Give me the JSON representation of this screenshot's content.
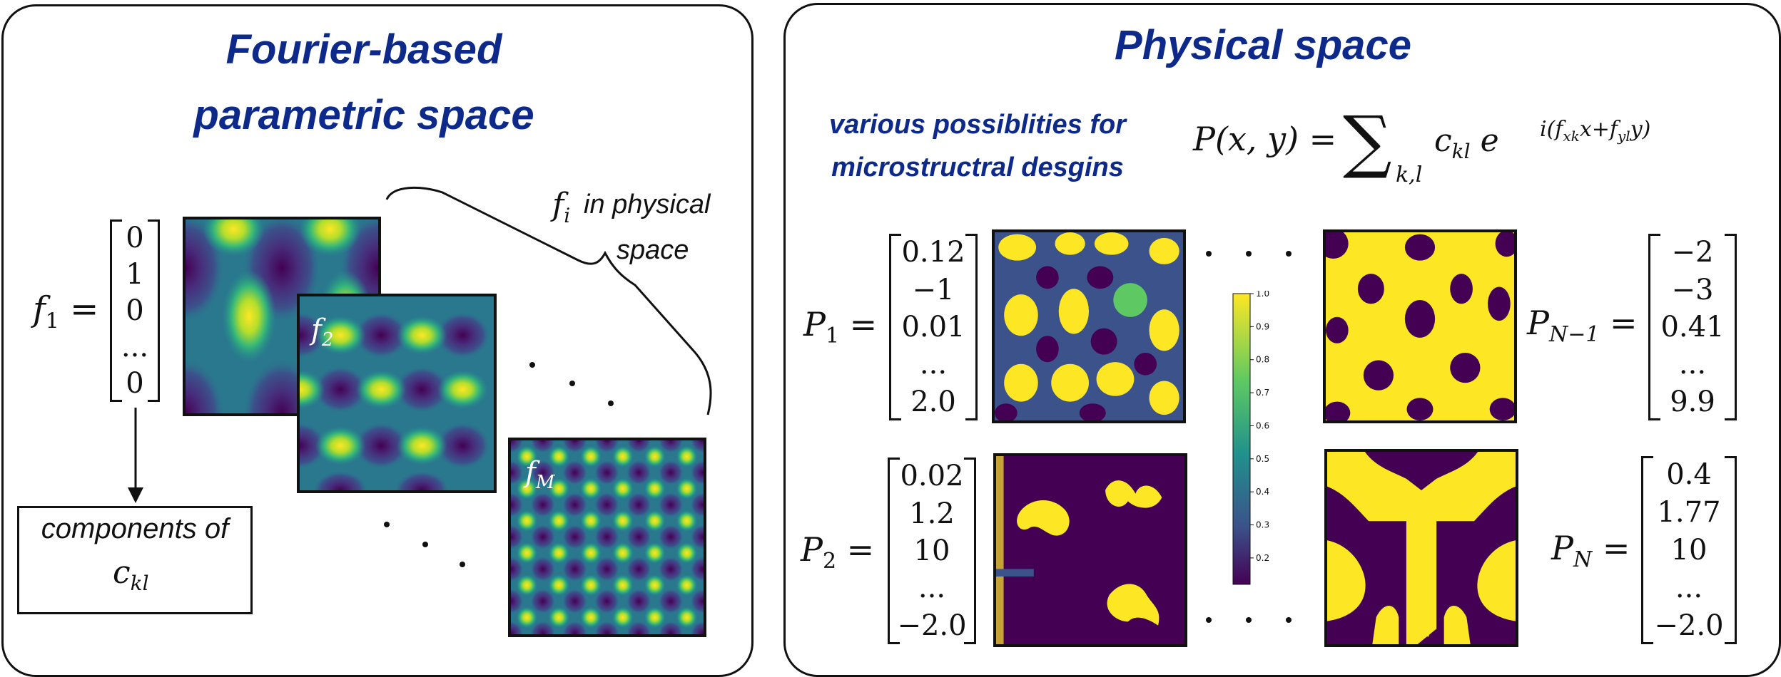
{
  "left_panel": {
    "title_line1": "Fourier-based",
    "title_line2": "parametric space",
    "f1_label": "f",
    "f1_sub": "1",
    "f1_vector": [
      "0",
      "1",
      "0",
      "...",
      "0"
    ],
    "f2_label": "f",
    "f2_sub": "2",
    "fM_label": "f",
    "fM_sub": "M",
    "fi_label": "f",
    "fi_sub": "i",
    "fi_text_line1": "in physical",
    "fi_text_line2": "space",
    "components_text": "components of",
    "ckl_label": "c",
    "ckl_sub": "kl"
  },
  "right_panel": {
    "title": "Physical space",
    "subtitle_line1": "various possiblities for",
    "subtitle_line2": "microstructral desgins",
    "equation": {
      "lhs": "P(x, y) =",
      "sum": "∑",
      "sum_sub": "k,l",
      "coef": "c",
      "coef_sub": "kl",
      "exp_base": "e",
      "exponent": "i(f",
      "exponent_sub1": "xk",
      "exponent_mid": "x+f",
      "exponent_sub2": "yl",
      "exponent_end": "y)"
    },
    "P1": {
      "label": "P",
      "sub": "1",
      "vector": [
        "0.12",
        "−1",
        "0.01",
        "...",
        "2.0"
      ]
    },
    "P2": {
      "label": "P",
      "sub": "2",
      "vector": [
        "0.02",
        "1.2",
        "10",
        "...",
        "−2.0"
      ]
    },
    "PN1": {
      "label": "P",
      "sub": "N−1",
      "vector": [
        "−2",
        "−3",
        "0.41",
        "...",
        "9.9"
      ]
    },
    "PN": {
      "label": "P",
      "sub": "N",
      "vector": [
        "0.4",
        "1.77",
        "10",
        "...",
        "−2.0"
      ]
    },
    "colorbar_ticks": [
      "1.0",
      "0.9",
      "0.8",
      "0.7",
      "0.6",
      "0.5",
      "0.4",
      "0.3",
      "0.2"
    ]
  },
  "colors": {
    "title_blue": "#0d2a8a",
    "viridis_dark": "#440154",
    "viridis_mid": "#21918c",
    "viridis_yellow": "#fde725"
  }
}
